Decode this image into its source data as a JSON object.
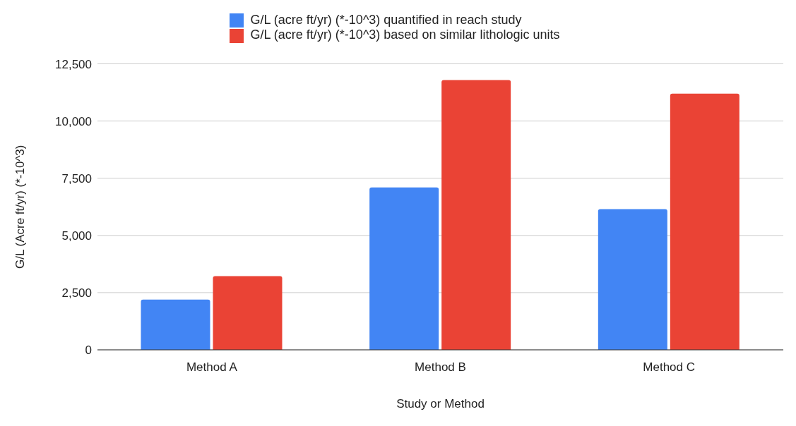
{
  "chart_data": {
    "type": "bar",
    "categories": [
      "Method A",
      "Method B",
      "Method C"
    ],
    "series": [
      {
        "name": "G/L (acre ft/yr) (*-10^3) quantified in reach study",
        "color": "#4285f4",
        "values": [
          2200,
          7100,
          6150
        ]
      },
      {
        "name": "G/L (acre ft/yr) (*-10^3) based on similar lithologic units",
        "color": "#ea4335",
        "values": [
          3220,
          11790,
          11200
        ]
      }
    ],
    "xlabel": "Study or Method",
    "ylabel": "G/L (Acre ft/yr) (*-10^3)",
    "ylim": [
      0,
      12500
    ],
    "yticks": [
      0,
      {
        "value": 2500,
        "label": "2,500"
      },
      {
        "value": 5000,
        "label": "5,000"
      },
      {
        "value": 7500,
        "label": "7,500"
      },
      {
        "value": 10000,
        "label": "10,000"
      },
      {
        "value": 12500,
        "label": "12,500"
      }
    ],
    "grid": "y",
    "legend": "top"
  }
}
